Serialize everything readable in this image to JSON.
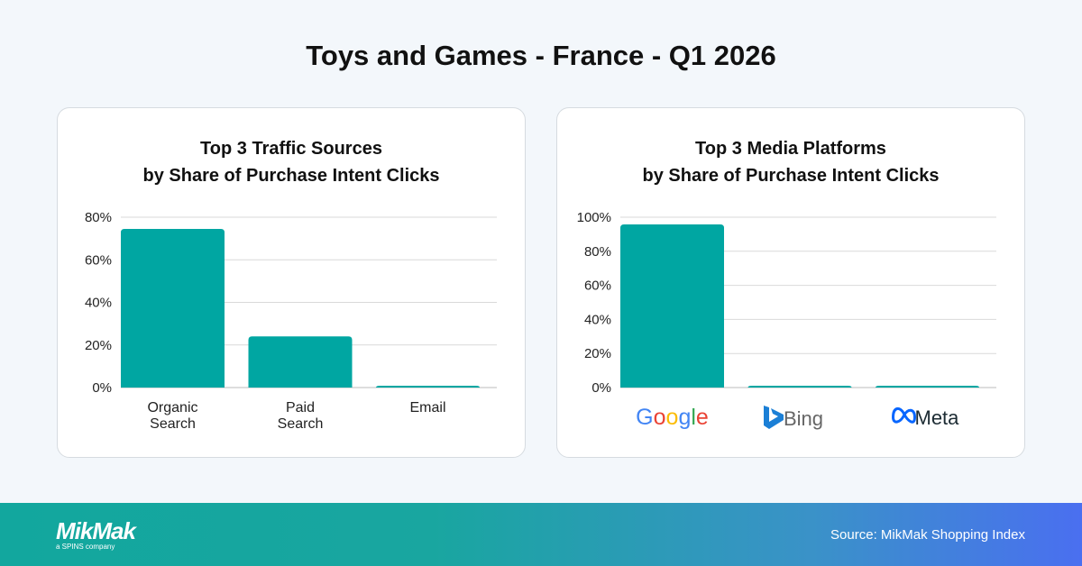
{
  "title": "Toys and Games - France - Q1 2026",
  "colors": {
    "bar": "#00a6a2",
    "grid": "#d9d9d9"
  },
  "chart_data": [
    {
      "type": "bar",
      "title_line1": "Top 3 Traffic Sources",
      "title_line2": "by Share of Purchase Intent Clicks",
      "categories": [
        [
          "Organic",
          "Search"
        ],
        [
          "Paid",
          "Search"
        ],
        [
          "Email"
        ]
      ],
      "values": [
        74.5,
        24,
        0.6
      ],
      "ylim": [
        0,
        80
      ],
      "yticks": [
        "0%",
        "20%",
        "40%",
        "60%",
        "80%"
      ],
      "grid": true
    },
    {
      "type": "bar",
      "title_line1": "Top 3 Media Platforms",
      "title_line2": "by Share of Purchase Intent Clicks",
      "categories": [
        "Google",
        "Bing",
        "Meta"
      ],
      "category_icons": [
        "google-logo",
        "bing-logo",
        "meta-logo"
      ],
      "values": [
        95.8,
        1,
        1
      ],
      "ylim": [
        0,
        100
      ],
      "yticks": [
        "0%",
        "20%",
        "40%",
        "60%",
        "80%",
        "100%"
      ],
      "grid": true
    }
  ],
  "footer": {
    "logo": "MikMak",
    "tagline": "a SPINS company",
    "source": "Source: MikMak Shopping Index"
  }
}
